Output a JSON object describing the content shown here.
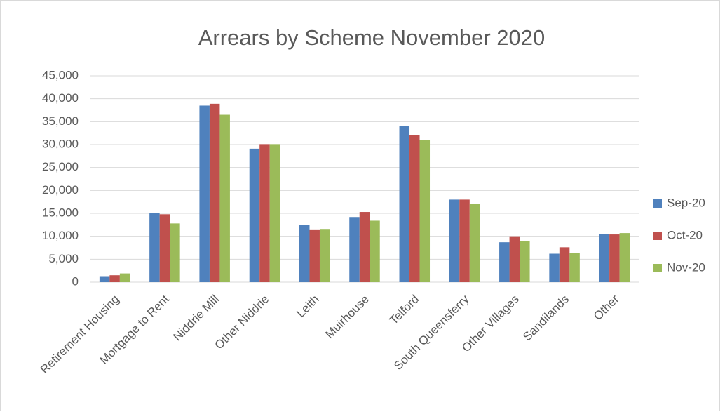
{
  "chart_data": {
    "type": "bar",
    "title": "Arrears by Scheme November 2020",
    "categories": [
      "Retirement Housing",
      "Mortgage to Rent",
      "Niddrie Mill",
      "Other Niddrie",
      "Leith",
      "Muirhouse",
      "Telford",
      "South Queensferry",
      "Other Villages",
      "Sandilands",
      "Other"
    ],
    "series": [
      {
        "name": "Sep-20",
        "color": "#4f81bd",
        "values": [
          1300,
          15000,
          38500,
          29100,
          12400,
          14200,
          34000,
          18000,
          8700,
          6200,
          10500
        ]
      },
      {
        "name": "Oct-20",
        "color": "#c0504d",
        "values": [
          1500,
          14800,
          38900,
          30100,
          11500,
          15300,
          32000,
          18000,
          10000,
          7600,
          10400
        ]
      },
      {
        "name": "Nov-20",
        "color": "#9bbb59",
        "values": [
          1900,
          12800,
          36500,
          30100,
          11600,
          13400,
          31000,
          17100,
          9000,
          6300,
          10700
        ]
      }
    ],
    "ylim": [
      0,
      45000
    ],
    "yticks": [
      0,
      {
        "value": 5000,
        "label": "5,000"
      },
      {
        "value": 10000,
        "label": "10,000"
      },
      {
        "value": 15000,
        "label": "15,000"
      },
      {
        "value": 20000,
        "label": "20,000"
      },
      {
        "value": 25000,
        "label": "25,000"
      },
      {
        "value": 30000,
        "label": "30,000"
      },
      {
        "value": 35000,
        "label": "35,000"
      },
      {
        "value": 40000,
        "label": "40,000"
      },
      {
        "value": 45000,
        "label": "45,000"
      }
    ],
    "grid": true,
    "legend": "right"
  }
}
